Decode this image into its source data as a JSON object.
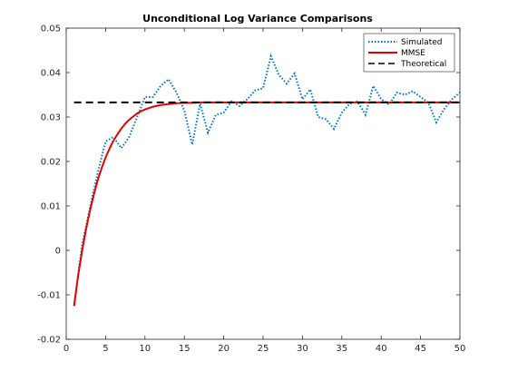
{
  "chart_data": {
    "type": "line",
    "title": "Unconditional Log Variance Comparisons",
    "xlabel": "",
    "ylabel": "",
    "xlim": [
      0,
      50
    ],
    "ylim": [
      -0.02,
      0.05
    ],
    "xticks": [
      0,
      5,
      10,
      15,
      20,
      25,
      30,
      35,
      40,
      45,
      50
    ],
    "yticks": [
      -0.02,
      -0.01,
      0,
      0.01,
      0.02,
      0.03,
      0.04,
      0.05
    ],
    "xtick_labels": [
      "0",
      "5",
      "10",
      "15",
      "20",
      "25",
      "30",
      "35",
      "40",
      "45",
      "50"
    ],
    "ytick_labels": [
      "-0.02",
      "-0.01",
      "0",
      "0.01",
      "0.02",
      "0.03",
      "0.04",
      "0.05"
    ],
    "grid": false,
    "legend_position": "top-right",
    "series": [
      {
        "name": "Simulated",
        "color": "#0072BD",
        "style": "dotted",
        "x": [
          1,
          2,
          3,
          4,
          5,
          6,
          7,
          8,
          9,
          10,
          11,
          12,
          13,
          14,
          15,
          16,
          17,
          18,
          19,
          20,
          21,
          22,
          23,
          24,
          25,
          26,
          27,
          28,
          29,
          30,
          31,
          32,
          33,
          34,
          35,
          36,
          37,
          38,
          39,
          40,
          41,
          42,
          43,
          44,
          45,
          46,
          47,
          48,
          49,
          50
        ],
        "y": [
          -0.0125,
          0.001,
          0.0095,
          0.0175,
          0.0245,
          0.0255,
          0.023,
          0.0255,
          0.03,
          0.0345,
          0.0345,
          0.037,
          0.0385,
          0.0355,
          0.0315,
          0.0238,
          0.033,
          0.0265,
          0.0305,
          0.031,
          0.0335,
          0.0325,
          0.034,
          0.036,
          0.0365,
          0.0437,
          0.0395,
          0.0375,
          0.0398,
          0.034,
          0.0362,
          0.03,
          0.0295,
          0.0273,
          0.031,
          0.033,
          0.0335,
          0.0305,
          0.037,
          0.034,
          0.0328,
          0.0355,
          0.035,
          0.0358,
          0.0345,
          0.0332,
          0.0288,
          0.0318,
          0.034,
          0.0355
        ]
      },
      {
        "name": "MMSE",
        "color": "#E00000",
        "style": "solid",
        "x": [
          1,
          1.5,
          2,
          2.5,
          3,
          3.5,
          4,
          4.5,
          5,
          5.5,
          6,
          6.5,
          7,
          7.5,
          8,
          8.5,
          9,
          9.5,
          10,
          11,
          12,
          13,
          14,
          15,
          16,
          17,
          18,
          19,
          20,
          22,
          24,
          26,
          28,
          30,
          32,
          34,
          36,
          38,
          40,
          42,
          44,
          46,
          48,
          50
        ],
        "y": [
          -0.0125,
          -0.0058,
          -0.0003,
          0.0046,
          0.0088,
          0.0125,
          0.0158,
          0.0185,
          0.0209,
          0.0229,
          0.0247,
          0.0261,
          0.0274,
          0.0285,
          0.0294,
          0.0301,
          0.0308,
          0.0313,
          0.0317,
          0.0323,
          0.0327,
          0.0329,
          0.0331,
          0.0332,
          0.0332,
          0.0333,
          0.0333,
          0.0333,
          0.0333,
          0.0333,
          0.0333,
          0.0333,
          0.0333,
          0.0333,
          0.0333,
          0.0333,
          0.0333,
          0.0333,
          0.0333,
          0.0333,
          0.0333,
          0.0333,
          0.0333,
          0.0333
        ]
      },
      {
        "name": "Theoretical",
        "color": "#000000",
        "style": "dashed",
        "x": [
          1,
          50
        ],
        "y": [
          0.0333,
          0.0333
        ]
      }
    ]
  }
}
